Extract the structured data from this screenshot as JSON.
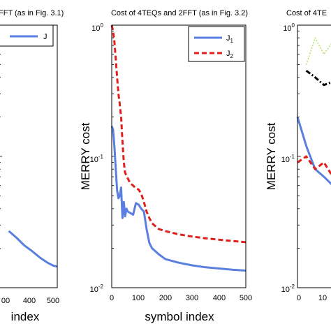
{
  "chart_data": [
    {
      "type": "line",
      "title": "FFT (as in Fig. 3.1)",
      "xlabel": "index",
      "ylabel": "",
      "yscale": "log",
      "xlim": [
        0,
        500
      ],
      "ylim": [
        0.01,
        1
      ],
      "x_ticks": [
        "00",
        "400",
        "500"
      ],
      "y_ticks": [],
      "legend_position": "top-left",
      "series": [
        {
          "name": "J",
          "color": "#5b7fe0",
          "style": "solid",
          "x": [
            0,
            80,
            160,
            240,
            320,
            400,
            460,
            500
          ],
          "y": [
            0.027,
            0.024,
            0.021,
            0.019,
            0.017,
            0.0155,
            0.0147,
            0.0145
          ]
        }
      ]
    },
    {
      "type": "line",
      "title": "Cost of 4TEQs and 2FFT (as in Fig. 3.2)",
      "xlabel": "symbol index",
      "ylabel": "MERRY cost",
      "yscale": "log",
      "xlim": [
        0,
        500
      ],
      "ylim": [
        0.01,
        1
      ],
      "x_ticks": [
        "0",
        "100",
        "200",
        "300",
        "400",
        "500"
      ],
      "y_ticks": [
        {
          "value": 1,
          "label": "10",
          "exp": "0"
        },
        {
          "value": 0.1,
          "label": "10",
          "exp": "-1"
        },
        {
          "value": 0.01,
          "label": "10",
          "exp": "-2"
        }
      ],
      "legend_position": "top-right",
      "series": [
        {
          "name": "J",
          "sub": "1",
          "color": "#5b7fe0",
          "style": "solid",
          "x": [
            0,
            5,
            10,
            15,
            20,
            25,
            30,
            35,
            40,
            45,
            50,
            55,
            60,
            70,
            80,
            90,
            100,
            110,
            120,
            130,
            140,
            150,
            175,
            200,
            250,
            300,
            350,
            400,
            450,
            500
          ],
          "y": [
            0.17,
            0.16,
            0.12,
            0.08,
            0.055,
            0.048,
            0.05,
            0.058,
            0.034,
            0.045,
            0.035,
            0.04,
            0.038,
            0.037,
            0.036,
            0.044,
            0.043,
            0.04,
            0.038,
            0.028,
            0.022,
            0.02,
            0.018,
            0.0165,
            0.0155,
            0.0148,
            0.0143,
            0.014,
            0.0137,
            0.0135
          ]
        },
        {
          "name": "J",
          "sub": "2",
          "color": "#e0201c",
          "style": "dashed",
          "x": [
            0,
            5,
            10,
            15,
            20,
            25,
            30,
            35,
            40,
            45,
            50,
            60,
            70,
            80,
            90,
            100,
            110,
            120,
            130,
            140,
            150,
            175,
            200,
            250,
            300,
            350,
            400,
            450,
            500
          ],
          "y": [
            1.0,
            0.9,
            0.75,
            0.55,
            0.4,
            0.3,
            0.25,
            0.2,
            0.13,
            0.09,
            0.075,
            0.068,
            0.062,
            0.06,
            0.057,
            0.056,
            0.052,
            0.045,
            0.038,
            0.034,
            0.031,
            0.028,
            0.027,
            0.0255,
            0.0245,
            0.0238,
            0.0232,
            0.0227,
            0.0222
          ]
        }
      ]
    },
    {
      "type": "line",
      "title": "Cost of 4TE",
      "xlabel": "",
      "ylabel": "MERRY cost",
      "yscale": "log",
      "xlim": [
        0,
        500
      ],
      "ylim": [
        0.01,
        1
      ],
      "x_ticks": [
        "0",
        "10"
      ],
      "y_ticks": [
        {
          "value": 1,
          "label": "10",
          "exp": "0"
        },
        {
          "value": 0.1,
          "label": "10",
          "exp": "-1"
        },
        {
          "value": 0.01,
          "label": "10",
          "exp": "-2"
        }
      ],
      "legend_position": "",
      "series": [
        {
          "name": "",
          "color": "#b5e06a",
          "style": "dotted",
          "x": [
            5,
            10,
            15,
            20,
            25,
            30,
            40,
            50,
            60,
            70
          ],
          "y": [
            0.5,
            0.8,
            0.6,
            0.75,
            0.55,
            0.7,
            0.5,
            0.4,
            0.3,
            0.15
          ]
        },
        {
          "name": "",
          "color": "#000000",
          "style": "dashdot",
          "x": [
            5,
            10,
            15,
            20,
            25,
            30,
            35,
            40,
            45,
            50,
            60,
            70,
            80,
            90,
            100,
            110,
            120,
            130,
            140
          ],
          "y": [
            0.45,
            0.4,
            0.35,
            0.37,
            0.3,
            0.25,
            0.2,
            0.22,
            0.15,
            0.13,
            0.09,
            0.08,
            0.06,
            0.055,
            0.05,
            0.048,
            0.045,
            0.045,
            0.045
          ]
        },
        {
          "name": "",
          "color": "#5b7fe0",
          "style": "solid",
          "x": [
            0,
            5,
            10,
            15,
            20,
            25,
            30,
            40,
            50,
            60,
            70,
            80,
            90,
            100,
            110,
            120,
            130,
            140
          ],
          "y": [
            0.2,
            0.12,
            0.08,
            0.07,
            0.06,
            0.045,
            0.05,
            0.04,
            0.032,
            0.028,
            0.024,
            0.021,
            0.019,
            0.017,
            0.016,
            0.015,
            0.0145,
            0.014
          ]
        },
        {
          "name": "",
          "color": "#e0201c",
          "style": "dashed",
          "x": [
            0,
            5,
            10,
            15,
            20,
            25,
            30,
            35,
            40,
            50,
            60,
            70
          ],
          "y": [
            0.09,
            0.1,
            0.08,
            0.09,
            0.07,
            0.06,
            0.07,
            0.05,
            0.045,
            0.04,
            0.032,
            0.028
          ]
        }
      ]
    }
  ]
}
